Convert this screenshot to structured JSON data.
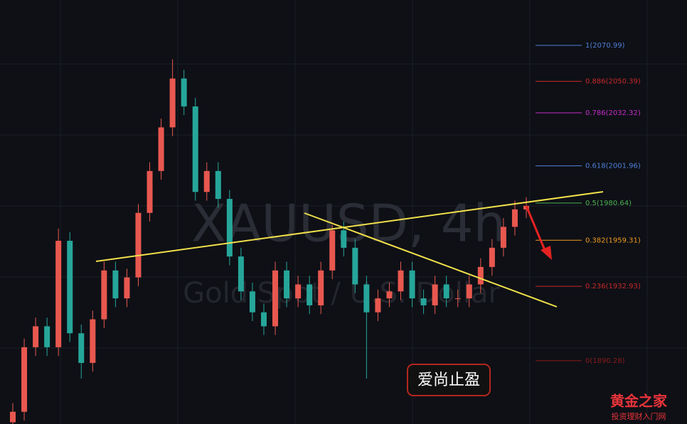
{
  "chart_data": {
    "type": "candlestick",
    "watermark": "XAUUSD, 4h",
    "watermark_subtitle": "Gold Spot / U.S. Dollar",
    "annotation": "爱尚止盈",
    "brand": "黄金之家",
    "brand_subtitle": "投资理财入门网",
    "ylim": [
      1854,
      2097
    ],
    "up_color": "#e8584f",
    "down_color": "#26a69a",
    "open": [
      1855,
      1861,
      1898,
      1910,
      1898,
      1959,
      1906,
      1889,
      1914,
      1942,
      1926,
      1938,
      1975,
      1999,
      2024,
      2052,
      2036,
      1987,
      1999,
      1983,
      1950,
      1930,
      1918,
      1910,
      1942,
      1926,
      1934,
      1922,
      1942,
      1965,
      1955,
      1934,
      1918,
      1926,
      1930,
      1942,
      1926,
      1922,
      1934,
      1926,
      1926,
      1934,
      1944,
      1955,
      1967,
      1977
    ],
    "high": [
      1866,
      1903,
      1915,
      1915,
      1966,
      1964,
      1911,
      1919,
      1947,
      1947,
      1943,
      1980,
      2004,
      2029,
      2063,
      2057,
      2041,
      2004,
      2004,
      1988,
      1955,
      1935,
      1923,
      1947,
      1947,
      1939,
      1939,
      1947,
      1968,
      1970,
      1960,
      1939,
      1931,
      1935,
      1947,
      1947,
      1931,
      1939,
      1939,
      1931,
      1939,
      1949,
      1960,
      1972,
      1982,
      1984
    ],
    "low": [
      1850,
      1856,
      1893,
      1893,
      1893,
      1901,
      1880,
      1884,
      1909,
      1921,
      1921,
      1933,
      1970,
      1994,
      2019,
      2031,
      1982,
      1982,
      1978,
      1945,
      1925,
      1913,
      1905,
      1905,
      1921,
      1921,
      1917,
      1917,
      1937,
      1950,
      1929,
      1880,
      1913,
      1921,
      1925,
      1921,
      1917,
      1917,
      1921,
      1921,
      1921,
      1929,
      1939,
      1950,
      1962,
      1972
    ],
    "close": [
      1861,
      1898,
      1910,
      1898,
      1959,
      1906,
      1889,
      1914,
      1942,
      1926,
      1938,
      1975,
      1999,
      2024,
      2052,
      2036,
      1987,
      1999,
      1983,
      1950,
      1930,
      1918,
      1910,
      1942,
      1926,
      1934,
      1922,
      1942,
      1965,
      1955,
      1934,
      1918,
      1926,
      1930,
      1942,
      1926,
      1922,
      1934,
      1926,
      1926,
      1934,
      1944,
      1955,
      1967,
      1977,
      1979
    ],
    "fib_levels": [
      {
        "value": 2070.99,
        "label": "1(2070.99)",
        "color": "#4f7fd6"
      },
      {
        "value": 2050.39,
        "label": "0.886(2050.39)",
        "color": "#c62828"
      },
      {
        "value": 2032.32,
        "label": "0.786(2032.32)",
        "color": "#c42bc4"
      },
      {
        "value": 2001.96,
        "label": "0.618(2001.96)",
        "color": "#4f7fd6"
      },
      {
        "value": 1980.64,
        "label": "0.5(1980.64)",
        "color": "#4caf50"
      },
      {
        "value": 1959.31,
        "label": "0.382(1959.31)",
        "color": "#f09a1e"
      },
      {
        "value": 1932.93,
        "label": "0.236(1932.93)",
        "color": "#c62828"
      },
      {
        "value": 1890.28,
        "label": "0(1890.28)",
        "color": "#8b1a1a"
      }
    ]
  }
}
